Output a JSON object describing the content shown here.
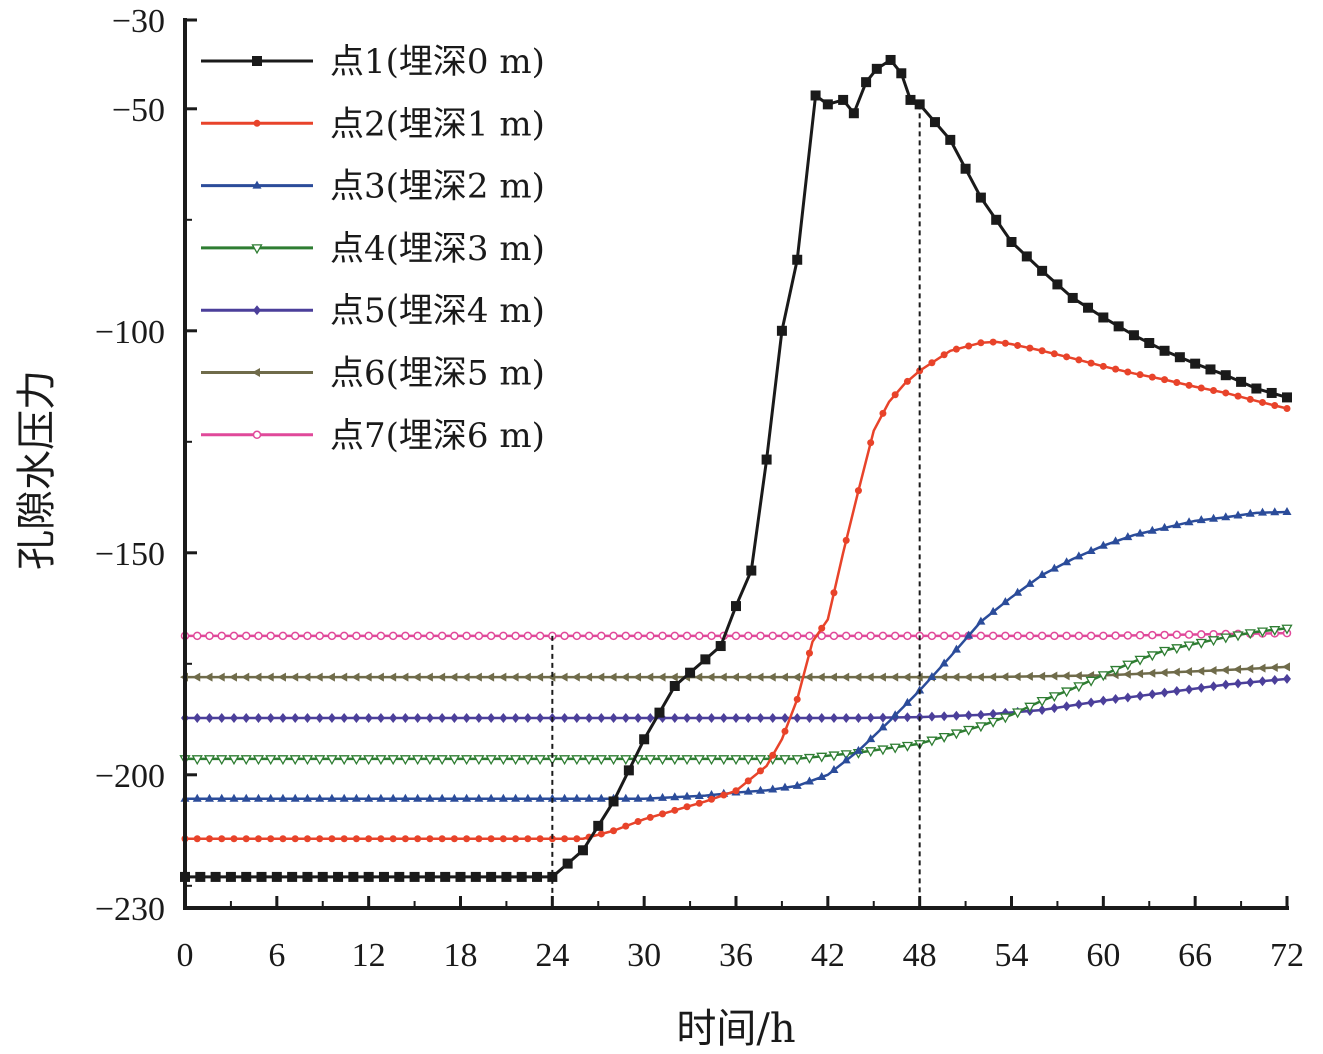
{
  "chart_data": {
    "type": "line",
    "title": "",
    "xlabel": "时间/h",
    "ylabel": "孔隙水压力",
    "xlim": [
      0,
      72
    ],
    "ylim": [
      -230,
      -30
    ],
    "xticks": [
      0,
      6,
      12,
      18,
      24,
      30,
      36,
      42,
      48,
      54,
      60,
      66,
      72
    ],
    "yticks": [
      -30,
      -50,
      -100,
      -150,
      -200,
      -230
    ],
    "grid": false,
    "legend_position": "top-left",
    "reference_lines_x": [
      24,
      48
    ],
    "series": [
      {
        "name": "点1(埋深0 m)",
        "color": "#1a1a1a",
        "marker": "square",
        "x": [
          0,
          24,
          25,
          26,
          28,
          30,
          32,
          33,
          34,
          35,
          36,
          37,
          38,
          39,
          40,
          41.2,
          42,
          43,
          43.7,
          44.5,
          45.2,
          46.1,
          46.8,
          47.4,
          48,
          50,
          52,
          54,
          56,
          58,
          60,
          62,
          64,
          66,
          68,
          70,
          72
        ],
        "y": [
          -223,
          -223,
          -220,
          -217,
          -206,
          -192,
          -180,
          -177,
          -174,
          -171,
          -162,
          -154,
          -129,
          -100,
          -84,
          -47,
          -49,
          -48,
          -51,
          -44,
          -41,
          -39,
          -42,
          -48,
          -49,
          -57,
          -70,
          -80,
          -86.5,
          -92.6,
          -97,
          -101,
          -104.5,
          -107.4,
          -110,
          -113,
          -115
        ]
      },
      {
        "name": "点2(埋深1 m)",
        "color": "#e8432a",
        "marker": "circle",
        "x": [
          0,
          26,
          28,
          30,
          32,
          34,
          36,
          38,
          39,
          40,
          41,
          42,
          43,
          44,
          45,
          46,
          47,
          48,
          50,
          52,
          53,
          54,
          56,
          58,
          60,
          62,
          64,
          66,
          68,
          70,
          72
        ],
        "y": [
          -214.4,
          -214.4,
          -212.6,
          -210,
          -208,
          -206,
          -203.6,
          -198,
          -192,
          -183,
          -170,
          -165,
          -150,
          -136,
          -122.5,
          -116,
          -112,
          -109,
          -104.5,
          -102.7,
          -102.5,
          -103,
          -104.5,
          -106.2,
          -108,
          -109.6,
          -111,
          -112.6,
          -114,
          -115.8,
          -117.5
        ]
      },
      {
        "name": "点3(埋深2 m)",
        "color": "#2b4c9a",
        "marker": "triangle-up",
        "x": [
          0,
          30,
          34,
          36,
          38,
          40,
          42,
          44,
          46,
          48,
          50,
          52,
          54,
          56,
          58,
          60,
          62,
          64,
          66,
          68,
          70,
          72
        ],
        "y": [
          -205.4,
          -205.4,
          -204.7,
          -204,
          -203.5,
          -202.5,
          -200,
          -194.6,
          -188,
          -181,
          -173.4,
          -165.5,
          -160,
          -155,
          -151.4,
          -148.4,
          -146,
          -144.4,
          -142.8,
          -142,
          -141,
          -140.8
        ]
      },
      {
        "name": "点4(埋深3 m)",
        "color": "#2e7d32",
        "marker": "triangle-down-open",
        "x": [
          0,
          40,
          44,
          46,
          48,
          50,
          52,
          54,
          56,
          58,
          60,
          62,
          64,
          66,
          68,
          70,
          72
        ],
        "y": [
          -196.4,
          -196.4,
          -195,
          -194,
          -193,
          -191,
          -189,
          -186.5,
          -183.3,
          -180.6,
          -177.5,
          -174.5,
          -172,
          -170.5,
          -169,
          -167.8,
          -167
        ]
      },
      {
        "name": "点5(埋深4 m)",
        "color": "#4b3f9a",
        "marker": "diamond",
        "x": [
          0,
          44,
          48,
          52,
          56,
          60,
          64,
          68,
          72
        ],
        "y": [
          -187.2,
          -187.2,
          -187,
          -186.5,
          -185.4,
          -183.3,
          -181.5,
          -179.7,
          -178.4
        ]
      },
      {
        "name": "点6(埋深5 m)",
        "color": "#6f6b4a",
        "marker": "triangle-left",
        "x": [
          0,
          52,
          56,
          60,
          64,
          68,
          72
        ],
        "y": [
          -178,
          -178,
          -177.8,
          -177.6,
          -177,
          -176.4,
          -175.7
        ]
      },
      {
        "name": "点7(埋深6 m)",
        "color": "#e0499a",
        "marker": "circle-open",
        "x": [
          0,
          60,
          72
        ],
        "y": [
          -168.7,
          -168.7,
          -168.1
        ]
      }
    ]
  }
}
